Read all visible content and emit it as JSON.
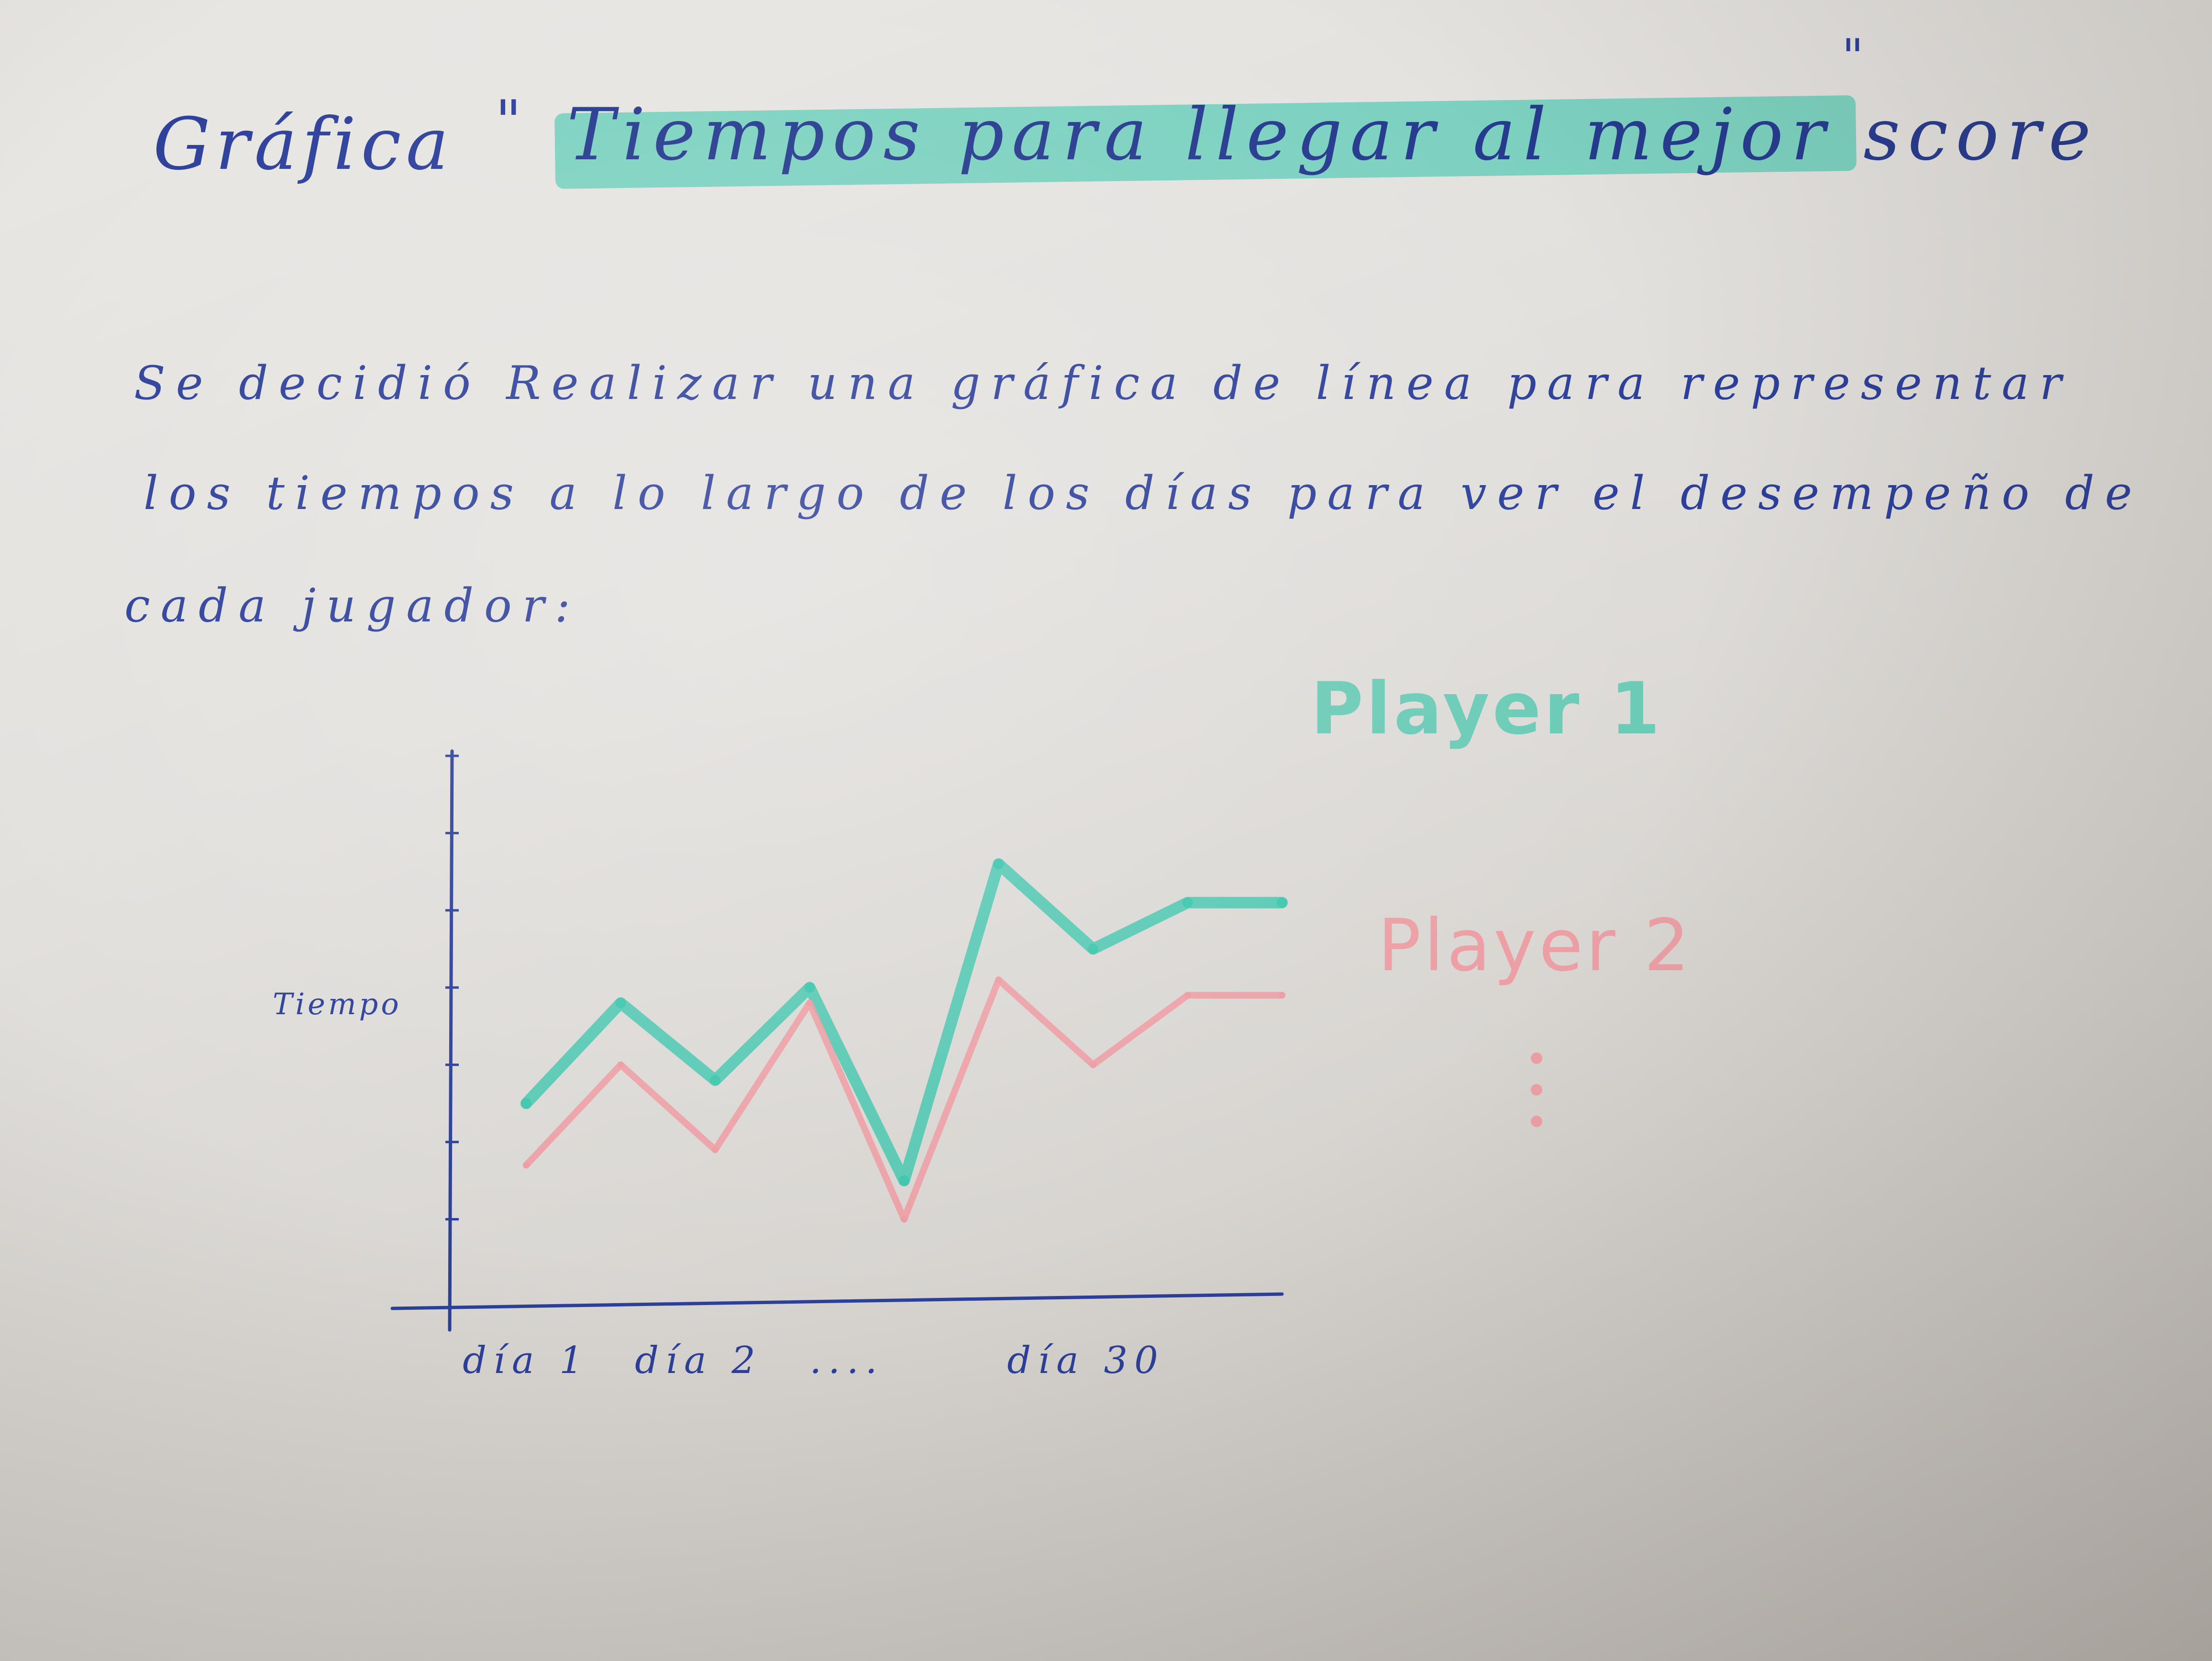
{
  "page": {
    "title_prefix": "Gráfica",
    "quote_open": "\"",
    "title_highlight": "Tiempos para llegar al mejor score",
    "quote_close": "\"",
    "body_lines": [
      "Se decidió Realizar una gráfica de línea para representar",
      "los tiempos a lo largo de los días para ver el desempeño de",
      "cada jugador:"
    ],
    "highlight_color": "#3bc6ad",
    "ink_color": "#2c3f9a"
  },
  "chart_data": {
    "type": "line",
    "title": "",
    "xlabel": "",
    "ylabel": "Tiempo",
    "x_tick_labels": [
      "día 1",
      "día 2",
      "....",
      "día 30"
    ],
    "x": [
      0,
      1,
      2,
      3,
      4,
      5,
      6,
      7,
      8
    ],
    "ylim": [
      0,
      7
    ],
    "y_ticks": 7,
    "grid": false,
    "legend_position": "right",
    "legend_more": "⋮",
    "series": [
      {
        "name": "Player 1",
        "color": "#3bc6ad",
        "values": [
          2.5,
          3.8,
          2.8,
          4.0,
          1.5,
          5.6,
          4.5,
          5.1,
          5.1
        ]
      },
      {
        "name": "Player 2",
        "color": "#ef9aa1",
        "values": [
          1.7,
          3.0,
          1.9,
          3.8,
          1.0,
          4.1,
          3.0,
          3.9,
          3.9
        ]
      }
    ]
  }
}
